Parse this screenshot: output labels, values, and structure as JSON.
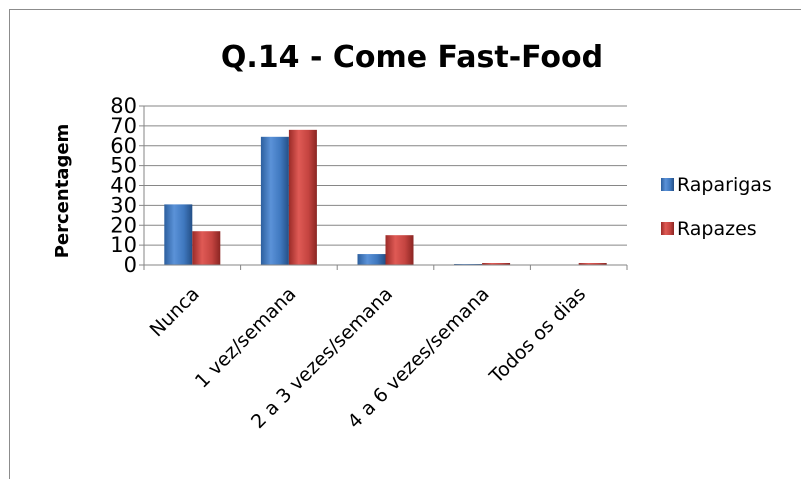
{
  "chart_data": {
    "type": "bar",
    "title": "Q.14 - Come Fast-Food",
    "ylabel": "Percentagem",
    "xlabel": "",
    "ylim": [
      0,
      80
    ],
    "yticks": [
      0,
      10,
      20,
      30,
      40,
      50,
      60,
      70,
      80
    ],
    "grid": true,
    "legend_position": "right",
    "categories": [
      "Nunca",
      "1 vez/semana",
      "2 a 3 vezes/semana",
      "4 a 6 vezes/semana",
      "Todos os dias"
    ],
    "series": [
      {
        "name": "Raparigas",
        "values": [
          30.5,
          64.5,
          5.5,
          0.5,
          0
        ],
        "color": "#4f81bd"
      },
      {
        "name": "Rapazes",
        "values": [
          17,
          68,
          15,
          1,
          1
        ],
        "color": "#c0504d"
      }
    ]
  }
}
